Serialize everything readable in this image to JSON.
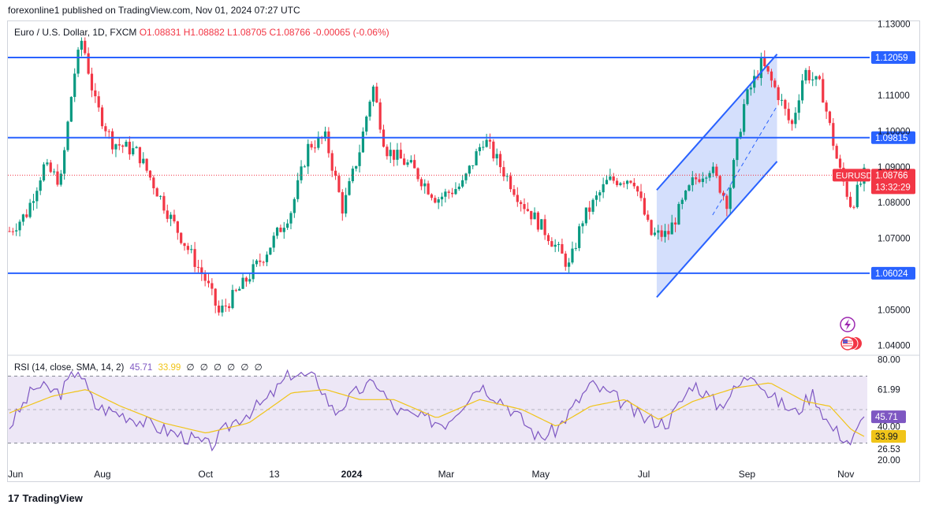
{
  "header": {
    "published_line": "forexonline1 published on TradingView.com, Nov 01, 2024 07:27 UTC",
    "symbol_name": "Euro / U.S. Dollar, 1D, FXCM",
    "ohlc_text": "O1.08831 H1.08882 L1.08705 C1.08766 -0.00065 (-0.06%)"
  },
  "rsi_legend": {
    "label": "RSI (14, close, SMA, 14, 2)",
    "rsi_value": "45.71",
    "sma_value": "33.99",
    "hidden_icons": "∅ ∅ ∅ ∅ ∅ ∅"
  },
  "footer": {
    "brand": "TradingView",
    "logo_mark": "17"
  },
  "colors": {
    "up": "#089981",
    "down": "#f23645",
    "level_line": "#2962ff",
    "channel_fill": "#c5d4fb",
    "rsi_line": "#7e57c2",
    "rsi_sma": "#f0c419",
    "rsi_band": "#ede7f6",
    "current_price_bg": "#f23645"
  },
  "chart_data": [
    {
      "type": "candlestick",
      "symbol": "EURUSD",
      "timeframe": "1D",
      "y_axis_ticks": [
        1.04,
        1.05,
        1.07,
        1.08,
        1.09,
        1.1,
        1.11,
        1.13
      ],
      "y_axis_tick_labels": [
        "1.04000",
        "1.05000",
        "1.07000",
        "1.08000",
        "1.09000",
        "1.10000",
        "1.11000",
        "1.13000"
      ],
      "ylim": [
        1.0375,
        1.1305
      ],
      "x_axis_labels": [
        "Jun",
        "Aug",
        "Oct",
        "13",
        "2024",
        "Mar",
        "May",
        "Jul",
        "Sep",
        "Nov"
      ],
      "horizontal_levels": [
        {
          "value": 1.12059,
          "label": "1.12059"
        },
        {
          "value": 1.09815,
          "label": "1.09815"
        },
        {
          "value": 1.06024,
          "label": "1.06024"
        }
      ],
      "current_price": {
        "symbol_label": "EURUSD",
        "value": "1.08766",
        "countdown": "13:32:29"
      },
      "price_anchors": [
        {
          "x": 0.0,
          "y": 1.072
        },
        {
          "x": 0.02,
          "y": 1.077
        },
        {
          "x": 0.04,
          "y": 1.09
        },
        {
          "x": 0.06,
          "y": 1.086
        },
        {
          "x": 0.075,
          "y": 1.115
        },
        {
          "x": 0.085,
          "y": 1.126
        },
        {
          "x": 0.1,
          "y": 1.108
        },
        {
          "x": 0.12,
          "y": 1.097
        },
        {
          "x": 0.15,
          "y": 1.094
        },
        {
          "x": 0.19,
          "y": 1.075
        },
        {
          "x": 0.23,
          "y": 1.058
        },
        {
          "x": 0.245,
          "y": 1.049
        },
        {
          "x": 0.27,
          "y": 1.056
        },
        {
          "x": 0.3,
          "y": 1.066
        },
        {
          "x": 0.33,
          "y": 1.078
        },
        {
          "x": 0.35,
          "y": 1.096
        },
        {
          "x": 0.37,
          "y": 1.098
        },
        {
          "x": 0.39,
          "y": 1.078
        },
        {
          "x": 0.41,
          "y": 1.095
        },
        {
          "x": 0.425,
          "y": 1.113
        },
        {
          "x": 0.44,
          "y": 1.095
        },
        {
          "x": 0.47,
          "y": 1.09
        },
        {
          "x": 0.5,
          "y": 1.081
        },
        {
          "x": 0.53,
          "y": 1.085
        },
        {
          "x": 0.555,
          "y": 1.098
        },
        {
          "x": 0.57,
          "y": 1.092
        },
        {
          "x": 0.6,
          "y": 1.08
        },
        {
          "x": 0.63,
          "y": 1.071
        },
        {
          "x": 0.655,
          "y": 1.062
        },
        {
          "x": 0.67,
          "y": 1.075
        },
        {
          "x": 0.7,
          "y": 1.086
        },
        {
          "x": 0.73,
          "y": 1.087
        },
        {
          "x": 0.75,
          "y": 1.071
        },
        {
          "x": 0.77,
          "y": 1.071
        },
        {
          "x": 0.8,
          "y": 1.086
        },
        {
          "x": 0.82,
          "y": 1.09
        },
        {
          "x": 0.84,
          "y": 1.08
        },
        {
          "x": 0.86,
          "y": 1.108
        },
        {
          "x": 0.88,
          "y": 1.119
        },
        {
          "x": 0.9,
          "y": 1.11
        },
        {
          "x": 0.915,
          "y": 1.101
        },
        {
          "x": 0.93,
          "y": 1.117
        },
        {
          "x": 0.95,
          "y": 1.112
        },
        {
          "x": 0.97,
          "y": 1.09
        },
        {
          "x": 0.985,
          "y": 1.079
        },
        {
          "x": 1.0,
          "y": 1.0877
        }
      ],
      "channel": {
        "upper": [
          [
            0.755,
            1.0835
          ],
          [
            0.895,
            1.1215
          ]
        ],
        "lower": [
          [
            0.755,
            1.0535
          ],
          [
            0.895,
            1.0915
          ]
        ],
        "midline": [
          [
            0.82,
            1.0765
          ],
          [
            0.895,
            1.107
          ]
        ]
      }
    },
    {
      "type": "line",
      "name": "RSI (14, close, SMA, 14, 2)",
      "y_axis_tick_labels": [
        "80.00",
        "61.99",
        "40.00",
        "26.53",
        "20.00"
      ],
      "ylim": [
        18,
        82
      ],
      "bands": {
        "upper": 70,
        "middle": 50,
        "lower": 30
      },
      "rsi_value": "45.71",
      "sma_value": "33.99",
      "rsi_anchors": [
        {
          "x": 0.0,
          "y": 40
        },
        {
          "x": 0.03,
          "y": 64
        },
        {
          "x": 0.06,
          "y": 60
        },
        {
          "x": 0.08,
          "y": 75
        },
        {
          "x": 0.1,
          "y": 52
        },
        {
          "x": 0.14,
          "y": 46
        },
        {
          "x": 0.18,
          "y": 38
        },
        {
          "x": 0.21,
          "y": 33
        },
        {
          "x": 0.235,
          "y": 28
        },
        {
          "x": 0.26,
          "y": 42
        },
        {
          "x": 0.3,
          "y": 55
        },
        {
          "x": 0.33,
          "y": 72
        },
        {
          "x": 0.36,
          "y": 68
        },
        {
          "x": 0.38,
          "y": 48
        },
        {
          "x": 0.41,
          "y": 62
        },
        {
          "x": 0.43,
          "y": 66
        },
        {
          "x": 0.45,
          "y": 50
        },
        {
          "x": 0.48,
          "y": 45
        },
        {
          "x": 0.51,
          "y": 42
        },
        {
          "x": 0.55,
          "y": 65
        },
        {
          "x": 0.58,
          "y": 54
        },
        {
          "x": 0.62,
          "y": 33
        },
        {
          "x": 0.64,
          "y": 38
        },
        {
          "x": 0.68,
          "y": 65
        },
        {
          "x": 0.71,
          "y": 57
        },
        {
          "x": 0.74,
          "y": 45
        },
        {
          "x": 0.77,
          "y": 42
        },
        {
          "x": 0.8,
          "y": 66
        },
        {
          "x": 0.83,
          "y": 52
        },
        {
          "x": 0.87,
          "y": 73
        },
        {
          "x": 0.89,
          "y": 58
        },
        {
          "x": 0.92,
          "y": 48
        },
        {
          "x": 0.94,
          "y": 60
        },
        {
          "x": 0.96,
          "y": 40
        },
        {
          "x": 0.985,
          "y": 30
        },
        {
          "x": 1.0,
          "y": 45.7
        }
      ],
      "sma_anchors": [
        {
          "x": 0.0,
          "y": 48
        },
        {
          "x": 0.05,
          "y": 58
        },
        {
          "x": 0.09,
          "y": 62
        },
        {
          "x": 0.13,
          "y": 52
        },
        {
          "x": 0.18,
          "y": 42
        },
        {
          "x": 0.23,
          "y": 36
        },
        {
          "x": 0.28,
          "y": 42
        },
        {
          "x": 0.33,
          "y": 60
        },
        {
          "x": 0.37,
          "y": 62
        },
        {
          "x": 0.41,
          "y": 56
        },
        {
          "x": 0.45,
          "y": 56
        },
        {
          "x": 0.5,
          "y": 45
        },
        {
          "x": 0.55,
          "y": 56
        },
        {
          "x": 0.6,
          "y": 50
        },
        {
          "x": 0.64,
          "y": 40
        },
        {
          "x": 0.68,
          "y": 52
        },
        {
          "x": 0.72,
          "y": 56
        },
        {
          "x": 0.76,
          "y": 44
        },
        {
          "x": 0.8,
          "y": 55
        },
        {
          "x": 0.85,
          "y": 63
        },
        {
          "x": 0.89,
          "y": 66
        },
        {
          "x": 0.93,
          "y": 55
        },
        {
          "x": 0.96,
          "y": 52
        },
        {
          "x": 0.985,
          "y": 38
        },
        {
          "x": 1.0,
          "y": 34
        }
      ]
    }
  ]
}
